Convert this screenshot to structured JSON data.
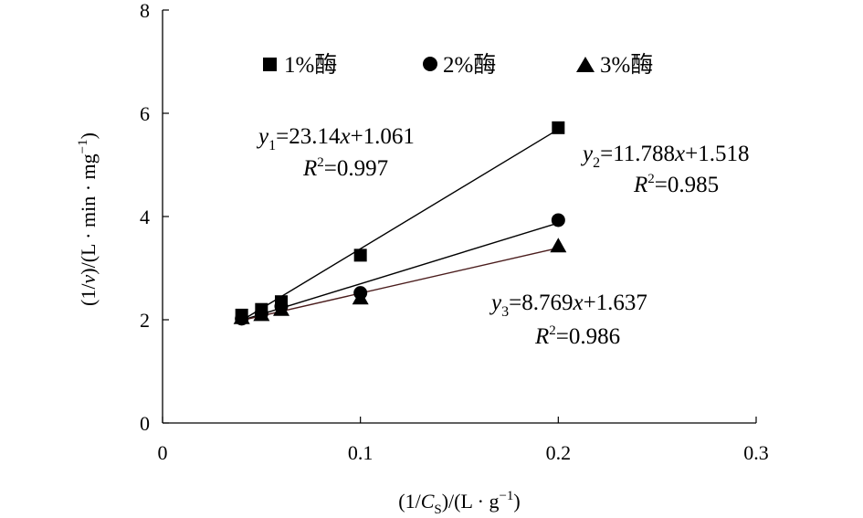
{
  "chart_data": {
    "type": "scatter",
    "xlabel": "(1/C_S)/(L · g⁻¹)",
    "ylabel": "(1/v)/(L · min · mg⁻¹)",
    "xlim": [
      0,
      0.3
    ],
    "ylim": [
      0,
      8
    ],
    "x_ticks": [
      "0",
      "0.1",
      "0.2",
      "0.3"
    ],
    "y_ticks": [
      "0",
      "2",
      "4",
      "6",
      "8"
    ],
    "legend_position": "top",
    "series": [
      {
        "name": "1%酶",
        "marker": "square",
        "points": [
          [
            0.04,
            2.09
          ],
          [
            0.05,
            2.2
          ],
          [
            0.06,
            2.35
          ],
          [
            0.1,
            3.25
          ],
          [
            0.2,
            5.72
          ]
        ],
        "fit": {
          "slope": 23.14,
          "intercept": 1.061
        },
        "equation": {
          "lhs": "y",
          "sub": "1",
          "rhs_a": "=23.14",
          "rhs_x": "x",
          "rhs_b": "+1.061",
          "r2": "=0.997"
        }
      },
      {
        "name": "2%酶",
        "marker": "circle",
        "points": [
          [
            0.04,
            2.02
          ],
          [
            0.05,
            2.12
          ],
          [
            0.06,
            2.26
          ],
          [
            0.1,
            2.52
          ],
          [
            0.2,
            3.93
          ]
        ],
        "fit": {
          "slope": 11.788,
          "intercept": 1.518
        },
        "equation": {
          "lhs": "y",
          "sub": "2",
          "rhs_a": "=11.788",
          "rhs_x": "x",
          "rhs_b": "+1.518",
          "r2": "=0.985"
        }
      },
      {
        "name": "3%酶",
        "marker": "triangle",
        "points": [
          [
            0.04,
            2.04
          ],
          [
            0.05,
            2.1
          ],
          [
            0.06,
            2.2
          ],
          [
            0.1,
            2.42
          ],
          [
            0.2,
            3.43
          ]
        ],
        "fit": {
          "slope": 8.769,
          "intercept": 1.637
        },
        "equation": {
          "lhs": "y",
          "sub": "3",
          "rhs_a": "=8.769",
          "rhs_x": "x",
          "rhs_b": "+1.637",
          "r2": "=0.986"
        }
      }
    ]
  }
}
